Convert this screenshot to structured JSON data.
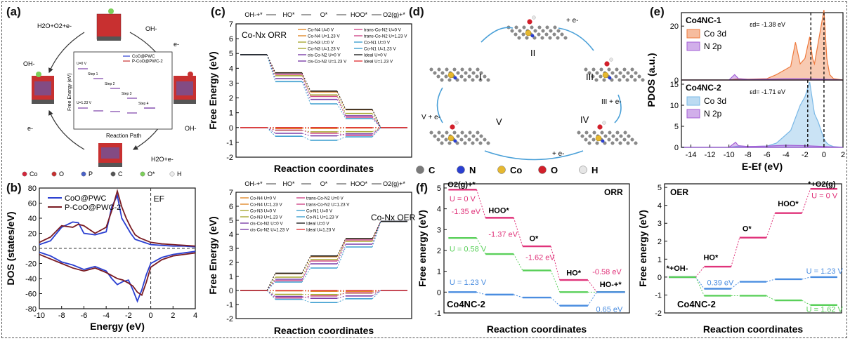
{
  "panel_labels": {
    "a": "(a)",
    "b": "(b)",
    "c": "(c)",
    "d": "(d)",
    "e": "(e)",
    "f": "(f)"
  },
  "panel_a": {
    "species": [
      "H2O+O2+e-",
      "OH-",
      "e-",
      "OH-",
      "e-",
      "OH-",
      "H2O+e-"
    ],
    "inset_title": "Reaction Path",
    "inset_ylabel": "Free Energy (eV)",
    "inset_legend": [
      "CoO@PWC",
      "P-CoO@PWC-2"
    ],
    "inset_steps": [
      "Step 1",
      "Step 2",
      "Step 3",
      "Step 4"
    ],
    "inset_u": [
      "U=0 V",
      "U=1.23 V"
    ],
    "atom_legend": [
      "Co",
      "O",
      "P",
      "C",
      "O*",
      "H"
    ],
    "atom_colors": [
      "#d4263a",
      "#c83030",
      "#4a62c8",
      "#555555",
      "#7cd05a",
      "#eeeeee"
    ]
  },
  "chart_data": [
    {
      "type": "line",
      "panel": "b",
      "xlabel": "Energy (eV)",
      "ylabel": "DOS (states/eV)",
      "xlim": [
        -10,
        4
      ],
      "ylim": [
        -80,
        80
      ],
      "xticks": [
        -10,
        -8,
        -6,
        -4,
        -2,
        0,
        2,
        4
      ],
      "yticks": [
        -80,
        -60,
        -40,
        -20,
        0,
        20,
        40,
        60,
        80
      ],
      "annotation": "EF",
      "legend": "top-left",
      "series": [
        {
          "name": "CoO@PWC",
          "color": "#2a3fd1",
          "x": [
            -10,
            -9,
            -8,
            -7,
            -6.5,
            -6,
            -5,
            -4,
            -3.5,
            -3,
            -2.6,
            -2.2,
            -1.8,
            -1.4,
            -1,
            0,
            1,
            2,
            3,
            4
          ],
          "y": [
            5,
            10,
            28,
            35,
            34,
            20,
            18,
            22,
            55,
            70,
            40,
            30,
            20,
            12,
            10,
            5,
            4,
            3,
            3,
            2
          ]
        },
        {
          "name": "P-CoO@PWC-2",
          "color": "#7a1b22",
          "x": [
            -10,
            -9,
            -8,
            -7,
            -6.5,
            -6,
            -5,
            -4,
            -3.5,
            -3,
            -2.6,
            -2.2,
            -1.8,
            -1.4,
            -1,
            0,
            1,
            2,
            3,
            4
          ],
          "y": [
            8,
            15,
            30,
            28,
            32,
            30,
            20,
            28,
            50,
            76,
            55,
            40,
            28,
            18,
            14,
            8,
            6,
            5,
            4,
            3
          ]
        },
        {
          "name": "CoO@PWC spin-down",
          "color": "#2a3fd1",
          "x": [
            -10,
            -9,
            -8,
            -7,
            -6,
            -5,
            -4,
            -3.5,
            -3,
            -2.5,
            -2,
            -1.6,
            -1.2,
            -0.8,
            -0.4,
            0,
            1,
            2,
            3,
            4
          ],
          "y": [
            -5,
            -10,
            -18,
            -22,
            -28,
            -24,
            -30,
            -40,
            -48,
            -44,
            -42,
            -55,
            -70,
            -55,
            -35,
            -20,
            -12,
            -8,
            -6,
            -4
          ]
        },
        {
          "name": "P-CoO@PWC-2 spin-down",
          "color": "#7a1b22",
          "x": [
            -10,
            -9,
            -8,
            -7,
            -6,
            -5,
            -4,
            -3.5,
            -3,
            -2.5,
            -2,
            -1.6,
            -1.2,
            -0.8,
            -0.4,
            0,
            1,
            2,
            3,
            4
          ],
          "y": [
            -8,
            -14,
            -20,
            -26,
            -30,
            -26,
            -32,
            -36,
            -40,
            -42,
            -46,
            -50,
            -58,
            -62,
            -45,
            -25,
            -15,
            -10,
            -8,
            -6
          ]
        }
      ]
    },
    {
      "type": "line",
      "panel": "c-top",
      "title": "Co-Nx ORR",
      "xlabel": "Reaction coordinates",
      "ylabel": "Free Energy (eV)",
      "ylim": [
        -2,
        7
      ],
      "yticks": [
        -2,
        -1,
        0,
        1,
        2,
        3,
        4,
        5,
        6,
        7
      ],
      "categories": [
        "OH-+*",
        "HO*",
        "O*",
        "HOO*",
        "O2(g)+*"
      ],
      "series": [
        {
          "name": "Co-N4 U=0 V",
          "color": "#e08a2c",
          "values": [
            4.92,
            3.7,
            2.4,
            1.2,
            0
          ]
        },
        {
          "name": "Co-N4 U=1.23 V",
          "color": "#e08a2c",
          "values": [
            0,
            -0.07,
            -0.06,
            -0.03,
            0
          ]
        },
        {
          "name": "Co-N3 U=0 V",
          "color": "#a8a832",
          "values": [
            4.92,
            3.5,
            2.2,
            0.95,
            0
          ]
        },
        {
          "name": "Co-N3 U=1.23 V",
          "color": "#a8a832",
          "values": [
            0,
            -0.19,
            -0.29,
            -0.28,
            0
          ]
        },
        {
          "name": "cis-Co-N2 U=0 V",
          "color": "#7b3fa8",
          "values": [
            4.92,
            3.3,
            1.9,
            0.8,
            0
          ]
        },
        {
          "name": "cis-Co-N2 U=1.23 V",
          "color": "#7b3fa8",
          "values": [
            0,
            -0.39,
            -0.56,
            -0.43,
            0
          ]
        },
        {
          "name": "trans-Co-N2 U=0 V",
          "color": "#d04a8a",
          "values": [
            4.92,
            3.6,
            2.1,
            0.7,
            0
          ]
        },
        {
          "name": "trans-Co-N2 U=1.23 V",
          "color": "#d04a8a",
          "values": [
            0,
            -0.17,
            -0.39,
            -0.53,
            0
          ]
        },
        {
          "name": "Co-N1 U=0 V",
          "color": "#3f9fd0",
          "values": [
            4.92,
            3.1,
            1.6,
            0.6,
            0
          ]
        },
        {
          "name": "Co-N1 U=1.23 V",
          "color": "#3f9fd0",
          "values": [
            0,
            -0.59,
            -0.86,
            -0.63,
            0
          ]
        },
        {
          "name": "Ideal U=0 V",
          "color": "#222222",
          "values": [
            4.92,
            3.69,
            2.46,
            1.23,
            0
          ]
        },
        {
          "name": "Ideal U=1.23 V",
          "color": "#e0393a",
          "values": [
            0,
            0,
            0,
            0,
            0
          ]
        }
      ]
    },
    {
      "type": "line",
      "panel": "c-bottom",
      "title": "Co-Nx OER",
      "xlabel": "Reaction coordinates",
      "ylabel": "Free Energy (eV)",
      "ylim": [
        -2,
        7
      ],
      "yticks": [
        -2,
        -1,
        0,
        1,
        2,
        3,
        4,
        5,
        6,
        7
      ],
      "categories": [
        "OH-+*",
        "HO*",
        "O*",
        "HOO*",
        "O2(g)+*"
      ],
      "series": [
        {
          "name": "Co-N4 U=0 V",
          "color": "#e08a2c",
          "values": [
            0,
            1.2,
            2.4,
            3.7,
            4.92
          ]
        },
        {
          "name": "Co-N4 U=1.23 V",
          "color": "#e08a2c",
          "values": [
            0,
            -0.03,
            -0.06,
            -0.07,
            0
          ]
        },
        {
          "name": "Co-N3 U=0 V",
          "color": "#a8a832",
          "values": [
            0,
            0.95,
            2.2,
            3.5,
            4.92
          ]
        },
        {
          "name": "Co-N3 U=1.23 V",
          "color": "#a8a832",
          "values": [
            0,
            -0.28,
            -0.29,
            -0.19,
            0
          ]
        },
        {
          "name": "cis-Co-N2 U=0 V",
          "color": "#7b3fa8",
          "values": [
            0,
            0.8,
            1.9,
            3.3,
            4.92
          ]
        },
        {
          "name": "cis-Co-N2 U=1.23 V",
          "color": "#7b3fa8",
          "values": [
            0,
            -0.43,
            -0.56,
            -0.39,
            0
          ]
        },
        {
          "name": "trans-Co-N2 U=0 V",
          "color": "#d04a8a",
          "values": [
            0,
            0.7,
            2.1,
            3.6,
            4.92
          ]
        },
        {
          "name": "trans-Co-N2 U=1.23 V",
          "color": "#d04a8a",
          "values": [
            0,
            -0.53,
            -0.39,
            -0.17,
            0
          ]
        },
        {
          "name": "Co-N1 U=0 V",
          "color": "#3f9fd0",
          "values": [
            0,
            0.6,
            1.6,
            3.1,
            4.92
          ]
        },
        {
          "name": "Co-N1 U=1.23 V",
          "color": "#3f9fd0",
          "values": [
            0,
            -0.63,
            -0.86,
            -0.59,
            0
          ]
        },
        {
          "name": "Ideal U=0 V",
          "color": "#222222",
          "values": [
            0,
            1.23,
            2.46,
            3.69,
            4.92
          ]
        },
        {
          "name": "Ideal U=1.23 V",
          "color": "#e0393a",
          "values": [
            0,
            0,
            0,
            0,
            0
          ]
        }
      ]
    },
    {
      "type": "area",
      "panel": "e",
      "xlabel": "E-Ef (eV)",
      "ylabel": "PDOS (a.u.)",
      "xlim": [
        -15,
        2
      ],
      "xticks": [
        -14,
        -12,
        -10,
        -8,
        -6,
        -4,
        -2,
        0,
        2
      ],
      "subplots": [
        {
          "title": "Co4NC-1",
          "eps_d": "εd= -1.38 eV",
          "ylim": [
            0,
            25
          ],
          "yticks": [
            0,
            20
          ],
          "series": [
            {
              "name": "Co 3d",
              "color": "#ee7a3e",
              "x": [
                -15,
                -10,
                -9,
                -8,
                -6,
                -5,
                -4.5,
                -4,
                -3.5,
                -3,
                -2.5,
                -2,
                -1.5,
                -1.2,
                -1,
                -0.6,
                -0.3,
                0,
                0.3,
                0.6,
                1,
                2
              ],
              "y": [
                0,
                0,
                0.5,
                0.3,
                0.5,
                2,
                3,
                4,
                5,
                14,
                6,
                8,
                16,
                8,
                6,
                14,
                20,
                26,
                8,
                2,
                0.5,
                0
              ]
            },
            {
              "name": "N 2p",
              "color": "#a45fd6",
              "x": [
                -15,
                -10,
                -9.4,
                -9,
                -8,
                -6,
                -4,
                -2,
                0,
                2
              ],
              "y": [
                0,
                0,
                2,
                0.5,
                0.2,
                0.3,
                0.5,
                0.5,
                0.3,
                0
              ]
            }
          ]
        },
        {
          "title": "Co4NC-2",
          "eps_d": "εd= -1.71 eV",
          "ylim": [
            0,
            16
          ],
          "yticks": [
            0,
            5,
            10,
            15
          ],
          "series": [
            {
              "name": "Co 3d",
              "color": "#7ab8e6",
              "x": [
                -15,
                -10,
                -9,
                -8,
                -6,
                -5,
                -4.5,
                -4,
                -3.5,
                -3,
                -2.5,
                -2,
                -1.5,
                -1.2,
                -1,
                -0.6,
                -0.3,
                0,
                0.3,
                0.6,
                1,
                2
              ],
              "y": [
                0,
                0,
                0.3,
                0.2,
                0.3,
                1,
                2,
                3,
                4,
                7,
                10,
                12,
                15.5,
                11,
                8,
                6,
                4,
                2,
                1,
                0.5,
                0.2,
                0
              ]
            },
            {
              "name": "N 2p",
              "color": "#a45fd6",
              "x": [
                -15,
                -10,
                -9.3,
                -9,
                -8,
                -6,
                -4,
                -2,
                0,
                2
              ],
              "y": [
                0,
                0,
                1.2,
                0.4,
                0.2,
                0.3,
                0.5,
                0.4,
                0.2,
                0
              ]
            }
          ]
        }
      ]
    },
    {
      "type": "line",
      "panel": "f-left",
      "title": "ORR",
      "catalyst": "Co4NC-2",
      "xlabel": "Reaction coordinates",
      "ylabel": "Free energy (eV)",
      "ylim": [
        -1,
        5.2
      ],
      "yticks": [
        -1,
        0,
        1,
        2,
        3,
        4,
        5
      ],
      "categories": [
        "O2(g)+*",
        "HOO*",
        "O*",
        "HO*",
        "HO-+*"
      ],
      "series": [
        {
          "name": "U = 0 V",
          "color": "#e0337a",
          "values": [
            4.92,
            3.57,
            2.2,
            0.58,
            0
          ]
        },
        {
          "name": "U = 0.58 V",
          "color": "#5ad05a",
          "values": [
            2.6,
            1.83,
            1.04,
            0,
            0
          ]
        },
        {
          "name": "U = 1.23 V",
          "color": "#4a8de0",
          "values": [
            0,
            -0.12,
            -0.26,
            -0.65,
            0
          ]
        }
      ],
      "annotations": [
        "-1.35 eV",
        "-1.37 eV",
        "-1.62 eV",
        "-0.58 eV",
        "0.65 eV"
      ],
      "labels": [
        "O2(g)+*",
        "HOO*",
        "O*",
        "HO*",
        "HO-+*"
      ]
    },
    {
      "type": "line",
      "panel": "f-right",
      "title": "OER",
      "catalyst": "Co4NC-2",
      "xlabel": "Reaction coordinates",
      "ylabel": "Free energy (eV)",
      "ylim": [
        -2,
        5.2
      ],
      "yticks": [
        -2,
        -1,
        0,
        1,
        2,
        3,
        4,
        5
      ],
      "categories": [
        "*+OH-",
        "HO*",
        "O*",
        "HOO*",
        "*+O2(g)"
      ],
      "series": [
        {
          "name": "U = 0 V",
          "color": "#e0337a",
          "values": [
            0,
            0.58,
            2.2,
            3.57,
            4.92
          ]
        },
        {
          "name": "U = 1.23 V",
          "color": "#4a8de0",
          "values": [
            0,
            -0.65,
            -0.26,
            -0.12,
            0
          ]
        },
        {
          "name": "U = 1.62 V",
          "color": "#5ad05a",
          "values": [
            0,
            -1.04,
            -1.04,
            -1.3,
            -1.56
          ]
        }
      ],
      "annotations": [
        "0.39 eV"
      ],
      "labels": [
        "*+OH-",
        "HO*",
        "O*",
        "HOO*",
        "*+O2(g)"
      ]
    }
  ],
  "panel_d": {
    "states": [
      "I",
      "II",
      "III",
      "IV",
      "V"
    ],
    "steps": [
      "+ e-",
      "III + e-",
      "+ e-",
      "V + e-"
    ],
    "legend": [
      "C",
      "N",
      "Co",
      "O",
      "H"
    ],
    "legend_colors": [
      "#7a7a7a",
      "#2a3fd1",
      "#e6b830",
      "#d21f2a",
      "#e6e6e6"
    ]
  }
}
